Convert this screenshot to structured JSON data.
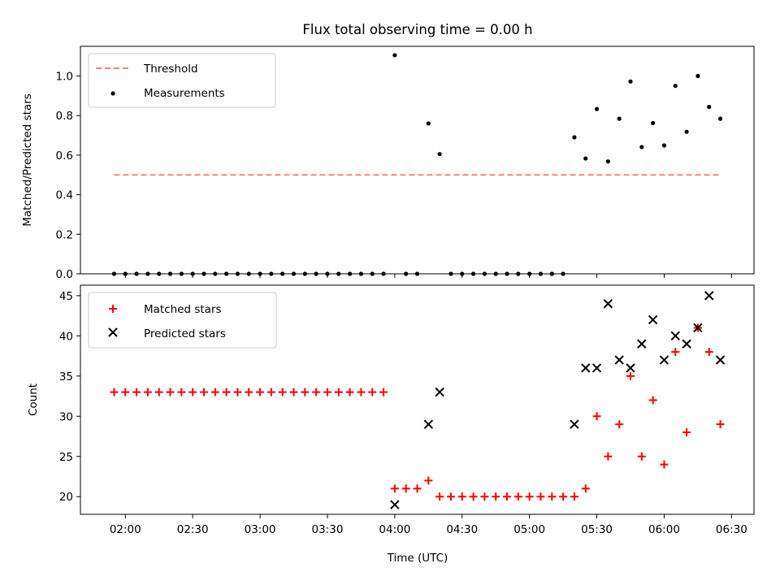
{
  "chart_data": [
    {
      "type": "scatter",
      "title": "Flux total observing time = 0.00 h",
      "xlabel": "",
      "ylabel": "Matched/Predicted stars",
      "ylim": [
        0,
        1.15
      ],
      "yticks": [
        "0.0",
        "0.2",
        "0.4",
        "0.6",
        "0.8",
        "1.0"
      ],
      "yticks_values": [
        0,
        0.2,
        0.4,
        0.6,
        0.8,
        1.0
      ],
      "x_range": [
        "01:40",
        "06:40"
      ],
      "legend": {
        "placement": "top-left",
        "entries": [
          "Threshold",
          "Measurements"
        ]
      },
      "threshold": {
        "name": "Threshold",
        "value": 0.5,
        "x": [
          "01:55",
          "06:25"
        ],
        "color": "#ff8080"
      },
      "series": [
        {
          "name": "Measurements",
          "color": "#000000",
          "marker": "dot",
          "points": [
            [
              "01:55",
              0
            ],
            [
              "02:00",
              0
            ],
            [
              "02:05",
              0
            ],
            [
              "02:10",
              0
            ],
            [
              "02:15",
              0
            ],
            [
              "02:20",
              0
            ],
            [
              "02:25",
              0
            ],
            [
              "02:30",
              0
            ],
            [
              "02:35",
              0
            ],
            [
              "02:40",
              0
            ],
            [
              "02:45",
              0
            ],
            [
              "02:50",
              0
            ],
            [
              "02:55",
              0
            ],
            [
              "03:00",
              0
            ],
            [
              "03:05",
              0
            ],
            [
              "03:10",
              0
            ],
            [
              "03:15",
              0
            ],
            [
              "03:20",
              0
            ],
            [
              "03:25",
              0
            ],
            [
              "03:30",
              0
            ],
            [
              "03:35",
              0
            ],
            [
              "03:40",
              0
            ],
            [
              "03:45",
              0
            ],
            [
              "03:50",
              0
            ],
            [
              "03:55",
              0
            ],
            [
              "04:00",
              1.105
            ],
            [
              "04:05",
              0
            ],
            [
              "04:10",
              0
            ],
            [
              "04:15",
              0.76
            ],
            [
              "04:20",
              0.605
            ],
            [
              "04:25",
              0
            ],
            [
              "04:30",
              0
            ],
            [
              "04:35",
              0
            ],
            [
              "04:40",
              0
            ],
            [
              "04:45",
              0
            ],
            [
              "04:50",
              0
            ],
            [
              "04:55",
              0
            ],
            [
              "05:00",
              0
            ],
            [
              "05:05",
              0
            ],
            [
              "05:10",
              0
            ],
            [
              "05:15",
              0
            ],
            [
              "05:20",
              0.69
            ],
            [
              "05:25",
              0.583
            ],
            [
              "05:30",
              0.833
            ],
            [
              "05:35",
              0.568
            ],
            [
              "05:40",
              0.784
            ],
            [
              "05:45",
              0.972
            ],
            [
              "05:50",
              0.641
            ],
            [
              "05:55",
              0.762
            ],
            [
              "06:00",
              0.649
            ],
            [
              "06:05",
              0.95
            ],
            [
              "06:10",
              0.718
            ],
            [
              "06:15",
              1.0
            ],
            [
              "06:20",
              0.844
            ],
            [
              "06:25",
              0.784
            ]
          ]
        }
      ]
    },
    {
      "type": "scatter",
      "title": "",
      "xlabel": "Time (UTC)",
      "ylabel": "Count",
      "ylim": [
        17.8,
        46.3
      ],
      "yticks": [
        "20",
        "25",
        "30",
        "35",
        "40",
        "45"
      ],
      "yticks_values": [
        20,
        25,
        30,
        35,
        40,
        45
      ],
      "x_range": [
        "01:40",
        "06:40"
      ],
      "xticks": [
        "02:00",
        "02:30",
        "03:00",
        "03:30",
        "04:00",
        "04:30",
        "05:00",
        "05:30",
        "06:00",
        "06:30"
      ],
      "legend": {
        "placement": "top-left",
        "entries": [
          "Matched stars",
          "Predicted stars"
        ]
      },
      "series": [
        {
          "name": "Matched stars",
          "color": "#ff0000",
          "marker": "plus",
          "points": [
            [
              "01:55",
              33
            ],
            [
              "02:00",
              33
            ],
            [
              "02:05",
              33
            ],
            [
              "02:10",
              33
            ],
            [
              "02:15",
              33
            ],
            [
              "02:20",
              33
            ],
            [
              "02:25",
              33
            ],
            [
              "02:30",
              33
            ],
            [
              "02:35",
              33
            ],
            [
              "02:40",
              33
            ],
            [
              "02:45",
              33
            ],
            [
              "02:50",
              33
            ],
            [
              "02:55",
              33
            ],
            [
              "03:00",
              33
            ],
            [
              "03:05",
              33
            ],
            [
              "03:10",
              33
            ],
            [
              "03:15",
              33
            ],
            [
              "03:20",
              33
            ],
            [
              "03:25",
              33
            ],
            [
              "03:30",
              33
            ],
            [
              "03:35",
              33
            ],
            [
              "03:40",
              33
            ],
            [
              "03:45",
              33
            ],
            [
              "03:50",
              33
            ],
            [
              "03:55",
              33
            ],
            [
              "04:00",
              21
            ],
            [
              "04:05",
              21
            ],
            [
              "04:10",
              21
            ],
            [
              "04:15",
              22
            ],
            [
              "04:20",
              20
            ],
            [
              "04:25",
              20
            ],
            [
              "04:30",
              20
            ],
            [
              "04:35",
              20
            ],
            [
              "04:40",
              20
            ],
            [
              "04:45",
              20
            ],
            [
              "04:50",
              20
            ],
            [
              "04:55",
              20
            ],
            [
              "05:00",
              20
            ],
            [
              "05:05",
              20
            ],
            [
              "05:10",
              20
            ],
            [
              "05:15",
              20
            ],
            [
              "05:20",
              20
            ],
            [
              "05:25",
              21
            ],
            [
              "05:30",
              30
            ],
            [
              "05:35",
              25
            ],
            [
              "05:40",
              29
            ],
            [
              "05:45",
              35
            ],
            [
              "05:50",
              25
            ],
            [
              "05:55",
              32
            ],
            [
              "06:00",
              24
            ],
            [
              "06:05",
              38
            ],
            [
              "06:10",
              28
            ],
            [
              "06:15",
              41
            ],
            [
              "06:20",
              38
            ],
            [
              "06:25",
              29
            ]
          ]
        },
        {
          "name": "Predicted stars",
          "color": "#000000",
          "marker": "x",
          "points": [
            [
              "04:00",
              19
            ],
            [
              "04:15",
              29
            ],
            [
              "04:20",
              33
            ],
            [
              "05:20",
              29
            ],
            [
              "05:25",
              36
            ],
            [
              "05:30",
              36
            ],
            [
              "05:35",
              44
            ],
            [
              "05:40",
              37
            ],
            [
              "05:45",
              36
            ],
            [
              "05:50",
              39
            ],
            [
              "05:55",
              42
            ],
            [
              "06:00",
              37
            ],
            [
              "06:05",
              40
            ],
            [
              "06:10",
              39
            ],
            [
              "06:15",
              41
            ],
            [
              "06:20",
              45
            ],
            [
              "06:25",
              37
            ]
          ]
        }
      ]
    }
  ]
}
